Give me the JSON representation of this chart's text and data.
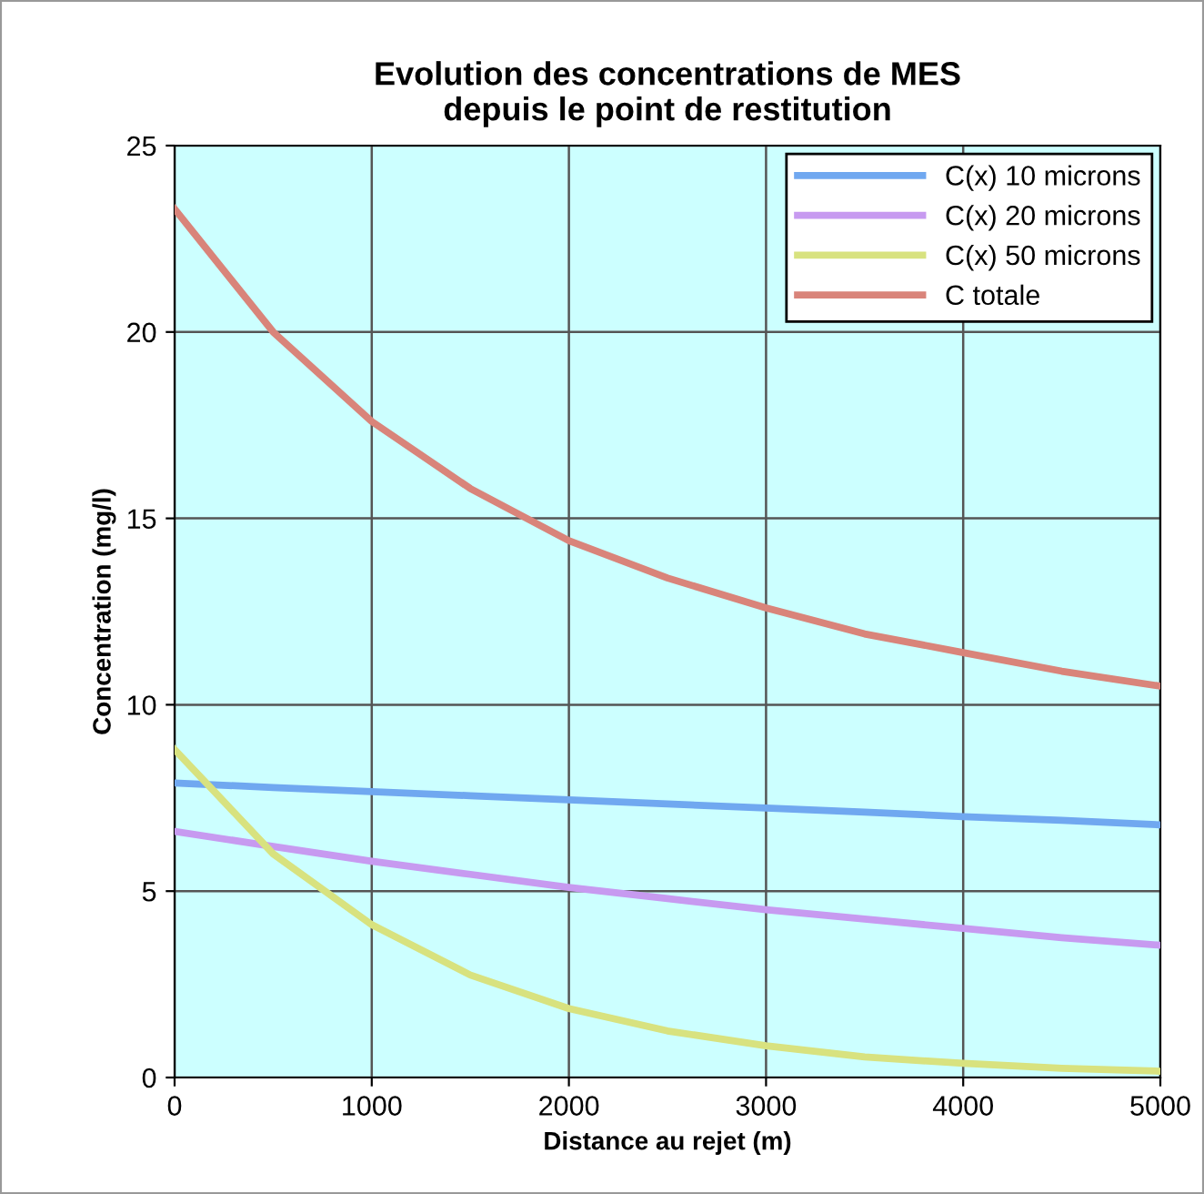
{
  "chart_data": {
    "type": "line",
    "title": "Evolution des concentrations de MES\ndepuis le point de restitution",
    "xlabel": "Distance au rejet (m)",
    "ylabel": "Concentration (mg/l)",
    "x": [
      0,
      500,
      1000,
      1500,
      2000,
      2500,
      3000,
      3500,
      4000,
      4500,
      5000
    ],
    "series": [
      {
        "name": "C(x) 10 microns",
        "color": "#70a8f0",
        "values": [
          7.9,
          7.78,
          7.67,
          7.56,
          7.45,
          7.34,
          7.23,
          7.12,
          7.0,
          6.9,
          6.78
        ]
      },
      {
        "name": "C(x) 20 microns",
        "color": "#c79af0",
        "values": [
          6.6,
          6.2,
          5.8,
          5.45,
          5.1,
          4.8,
          4.5,
          4.25,
          4.0,
          3.75,
          3.55
        ]
      },
      {
        "name": "C(x) 50 microns",
        "color": "#d8e27f",
        "values": [
          8.8,
          6.0,
          4.1,
          2.75,
          1.85,
          1.25,
          0.85,
          0.55,
          0.38,
          0.25,
          0.17
        ]
      },
      {
        "name": "C totale",
        "color": "#d9847a",
        "values": [
          23.3,
          20.0,
          17.6,
          15.8,
          14.4,
          13.4,
          12.6,
          11.9,
          11.4,
          10.9,
          10.5
        ]
      }
    ],
    "xlim": [
      0,
      5000
    ],
    "xticks": [
      0,
      1000,
      2000,
      3000,
      4000,
      5000
    ],
    "ylim": [
      0,
      25
    ],
    "yticks": [
      0,
      5,
      10,
      15,
      20,
      25
    ],
    "grid": true,
    "legend": "top right",
    "marker": "none",
    "line_style": "solid"
  }
}
